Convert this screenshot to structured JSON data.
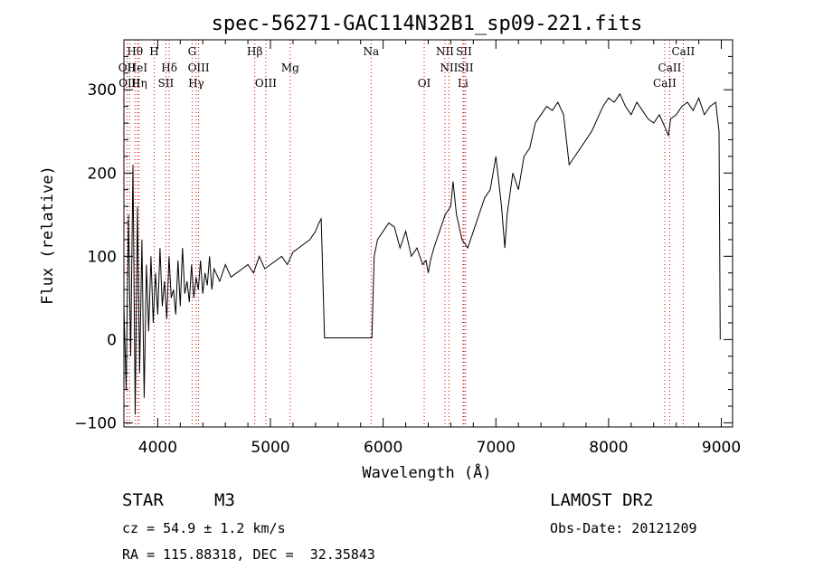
{
  "chart_data": {
    "type": "line",
    "title": "spec-56271-GAC114N32B1_sp09-221.fits",
    "xlabel": "Wavelength (Å)",
    "ylabel": "Flux (relative)",
    "xlim": [
      3700,
      9100
    ],
    "ylim": [
      -105,
      360
    ],
    "x_ticks": [
      4000,
      5000,
      6000,
      7000,
      8000,
      9000
    ],
    "y_ticks": [
      -100,
      0,
      100,
      200,
      300
    ],
    "grid": false,
    "series": [
      {
        "x": [
          3700,
          3720,
          3740,
          3760,
          3780,
          3800,
          3820,
          3840,
          3860,
          3880,
          3900,
          3920,
          3940,
          3960,
          3980,
          4000,
          4020,
          4040,
          4060,
          4080,
          4100,
          4120,
          4140,
          4160,
          4180,
          4200,
          4220,
          4240,
          4260,
          4280,
          4300,
          4320,
          4340,
          4360,
          4380,
          4400,
          4420,
          4440,
          4460,
          4480,
          4500,
          4550,
          4600,
          4650,
          4700,
          4750,
          4800,
          4850,
          4900,
          4950,
          5000,
          5050,
          5100,
          5150,
          5200,
          5250,
          5300,
          5350,
          5400,
          5430,
          5450,
          5460,
          5480,
          5900,
          5920,
          5950,
          6000,
          6050,
          6100,
          6150,
          6200,
          6250,
          6300,
          6350,
          6380,
          6400,
          6420,
          6450,
          6500,
          6550,
          6600,
          6620,
          6650,
          6700,
          6750,
          6800,
          6850,
          6900,
          6950,
          7000,
          7050,
          7080,
          7100,
          7150,
          7200,
          7250,
          7300,
          7350,
          7400,
          7450,
          7500,
          7550,
          7600,
          7650,
          7700,
          7750,
          7800,
          7850,
          7900,
          7950,
          8000,
          8050,
          8100,
          8150,
          8200,
          8250,
          8300,
          8350,
          8400,
          8450,
          8500,
          8530,
          8550,
          8600,
          8650,
          8700,
          8750,
          8800,
          8850,
          8900,
          8950,
          8980,
          8990
        ],
        "values": [
          40,
          -60,
          150,
          -20,
          210,
          -90,
          160,
          -40,
          120,
          -70,
          90,
          10,
          100,
          20,
          80,
          30,
          110,
          40,
          70,
          25,
          100,
          50,
          60,
          30,
          95,
          40,
          110,
          55,
          70,
          45,
          90,
          50,
          75,
          60,
          95,
          55,
          80,
          65,
          100,
          60,
          85,
          70,
          90,
          75,
          80,
          85,
          90,
          80,
          100,
          85,
          90,
          95,
          100,
          90,
          105,
          110,
          115,
          120,
          130,
          140,
          145,
          100,
          2,
          2,
          100,
          120,
          130,
          140,
          135,
          110,
          130,
          100,
          110,
          90,
          95,
          80,
          95,
          110,
          130,
          150,
          160,
          190,
          150,
          120,
          110,
          130,
          150,
          170,
          180,
          220,
          160,
          110,
          150,
          200,
          180,
          220,
          230,
          260,
          270,
          280,
          275,
          285,
          270,
          210,
          220,
          230,
          240,
          250,
          265,
          280,
          290,
          285,
          295,
          280,
          270,
          285,
          275,
          265,
          260,
          270,
          255,
          245,
          265,
          270,
          280,
          285,
          275,
          290,
          270,
          280,
          285,
          250,
          0
        ]
      }
    ],
    "lines": [
      {
        "label": "Hθ",
        "x": 3798,
        "row": 0
      },
      {
        "label": "OII",
        "x": 3727,
        "row": 1
      },
      {
        "label": "OIII",
        "x": 3750,
        "row": 2
      },
      {
        "label": "HeI",
        "x": 3820,
        "row": 1
      },
      {
        "label": "Hη",
        "x": 3835,
        "row": 2
      },
      {
        "label": "H",
        "x": 3969,
        "row": 0
      },
      {
        "label": "Hδ",
        "x": 4102,
        "row": 1
      },
      {
        "label": "SII",
        "x": 4072,
        "row": 2
      },
      {
        "label": "G",
        "x": 4305,
        "row": 0
      },
      {
        "label": "OIII",
        "x": 4363,
        "row": 1
      },
      {
        "label": "Hγ",
        "x": 4341,
        "row": 2
      },
      {
        "label": "Hβ",
        "x": 4861,
        "row": 0
      },
      {
        "label": "OIII",
        "x": 4959,
        "row": 2
      },
      {
        "label": "Mg",
        "x": 5175,
        "row": 1
      },
      {
        "label": "Na",
        "x": 5893,
        "row": 0
      },
      {
        "label": "OI",
        "x": 6364,
        "row": 2
      },
      {
        "label": "NII",
        "x": 6548,
        "row": 0
      },
      {
        "label": "NII",
        "x": 6584,
        "row": 1
      },
      {
        "label": "SII",
        "x": 6717,
        "row": 0
      },
      {
        "label": "SII",
        "x": 6731,
        "row": 1
      },
      {
        "label": "Li",
        "x": 6708,
        "row": 2
      },
      {
        "label": "CaII",
        "x": 8662,
        "row": 0
      },
      {
        "label": "CaII",
        "x": 8542,
        "row": 1
      },
      {
        "label": "CaII",
        "x": 8498,
        "row": 2
      }
    ],
    "line_color": "#cc0000",
    "curve_color": "#000000"
  },
  "info": {
    "object_type": "STAR",
    "subclass": "M3",
    "survey": "LAMOST DR2",
    "cz": "cz = 54.9 ± 1.2 km/s",
    "obs_date": "Obs-Date: 20121209",
    "coords": "RA = 115.88318, DEC =  32.35843"
  }
}
